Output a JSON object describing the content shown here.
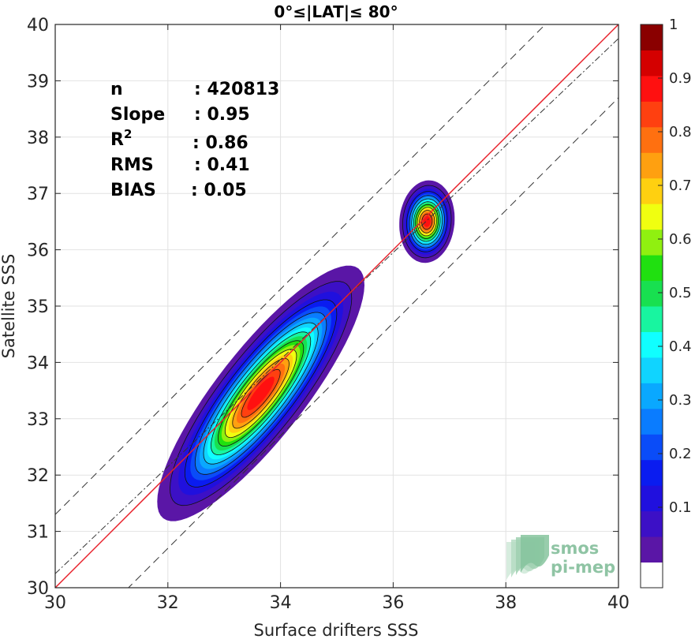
{
  "chart_data": {
    "type": "contour",
    "title": "0°≤|LAT|≤ 80°",
    "xlabel": "Surface drifters SSS",
    "ylabel": "Satellite SSS",
    "xlim": [
      30,
      40
    ],
    "ylim": [
      30,
      40
    ],
    "xticks": [
      "30",
      "32",
      "34",
      "36",
      "38",
      "40"
    ],
    "yticks": [
      "30",
      "31",
      "32",
      "33",
      "34",
      "35",
      "36",
      "37",
      "38",
      "39",
      "40"
    ],
    "grid": true,
    "stats": [
      {
        "label": "n",
        "value": ": 420813"
      },
      {
        "label": "Slope",
        "value": ": 0.95"
      },
      {
        "label": "R",
        "sup": "2",
        "value": ": 0.86"
      },
      {
        "label": "RMS",
        "value": ": 0.41"
      },
      {
        "label": "BIAS",
        "value": ": 0.05"
      }
    ],
    "one_to_one_line": {
      "color": "#e8202a",
      "from": [
        30,
        30
      ],
      "to": [
        40,
        40
      ]
    },
    "regression_line": {
      "slope": 0.95,
      "intercept": 1.75,
      "style": "dash-dot"
    },
    "envelope_lines": [
      {
        "offset": 1.3,
        "style": "dashed"
      },
      {
        "offset": -1.3,
        "style": "dashed"
      }
    ],
    "density_blobs": [
      {
        "name": "main",
        "center": [
          33.65,
          33.45
        ],
        "sigma_major": 1.15,
        "sigma_minor": 0.32,
        "angle_deg": 52
      },
      {
        "name": "secondary",
        "center": [
          36.6,
          36.5
        ],
        "sigma_major": 0.3,
        "sigma_minor": 0.2,
        "angle_deg": 85
      }
    ],
    "contour_levels": [
      0.05,
      0.1,
      0.15,
      0.2,
      0.25,
      0.3,
      0.35,
      0.4,
      0.45,
      0.5,
      0.55,
      0.6,
      0.65,
      0.7,
      0.75,
      0.8,
      0.85,
      0.9,
      0.95
    ],
    "colorbar": {
      "ticks": [
        "0.1",
        "0.2",
        "0.3",
        "0.4",
        "0.5",
        "0.6",
        "0.7",
        "0.8",
        "0.9",
        "1"
      ],
      "colors": [
        "#ffffff",
        "#5a16a6",
        "#3c10c6",
        "#2010de",
        "#0a1cf0",
        "#0a4cf8",
        "#0a7cff",
        "#0aa8ff",
        "#10d4ff",
        "#10ffff",
        "#18f5a0",
        "#18e050",
        "#20e010",
        "#90f010",
        "#f0ff10",
        "#ffd010",
        "#ffa010",
        "#ff7010",
        "#ff4010",
        "#ff1010",
        "#d40000",
        "#8a0000"
      ]
    },
    "logo": {
      "line1": "smos",
      "line2": "pi-mep"
    }
  }
}
